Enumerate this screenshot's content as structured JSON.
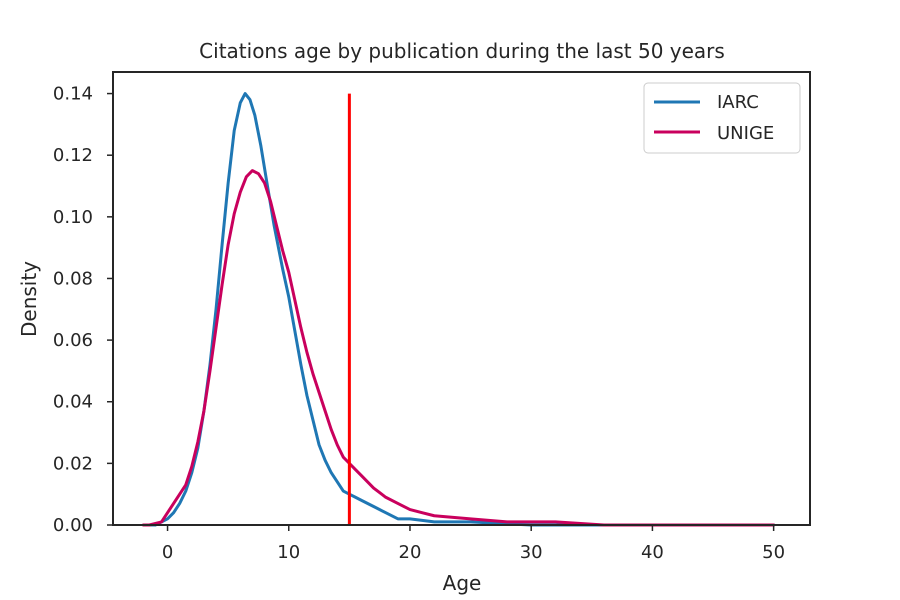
{
  "chart_data": {
    "type": "line",
    "title": "Citations age by publication during the last 50 years",
    "xlabel": "Age",
    "ylabel": "Density",
    "xlim": [
      -4.5,
      53
    ],
    "ylim": [
      0,
      0.147
    ],
    "xticks": [
      0,
      10,
      20,
      30,
      40,
      50
    ],
    "yticks": [
      0.0,
      0.02,
      0.04,
      0.06,
      0.08,
      0.1,
      0.12,
      0.14
    ],
    "xtick_labels": [
      "0",
      "10",
      "20",
      "30",
      "40",
      "50"
    ],
    "ytick_labels": [
      "0.00",
      "0.02",
      "0.04",
      "0.06",
      "0.08",
      "0.10",
      "0.12",
      "0.14"
    ],
    "grid": false,
    "legend_position": "top-right",
    "reference_line": {
      "x": 15,
      "y_top": 0.14,
      "color": "#ff0000"
    },
    "series": [
      {
        "name": "IARC",
        "color": "#1f77b4",
        "points": [
          [
            -1.5,
            0.0
          ],
          [
            -1.0,
            0.0
          ],
          [
            -0.5,
            0.001
          ],
          [
            0.0,
            0.002
          ],
          [
            0.5,
            0.004
          ],
          [
            1.0,
            0.007
          ],
          [
            1.5,
            0.011
          ],
          [
            2.0,
            0.017
          ],
          [
            2.5,
            0.025
          ],
          [
            3.0,
            0.037
          ],
          [
            3.5,
            0.052
          ],
          [
            4.0,
            0.07
          ],
          [
            4.5,
            0.091
          ],
          [
            5.0,
            0.111
          ],
          [
            5.5,
            0.128
          ],
          [
            6.0,
            0.137
          ],
          [
            6.4,
            0.14
          ],
          [
            6.8,
            0.138
          ],
          [
            7.2,
            0.133
          ],
          [
            7.7,
            0.123
          ],
          [
            8.2,
            0.111
          ],
          [
            8.8,
            0.097
          ],
          [
            9.5,
            0.083
          ],
          [
            10.0,
            0.074
          ],
          [
            10.5,
            0.063
          ],
          [
            11.0,
            0.052
          ],
          [
            11.5,
            0.042
          ],
          [
            12.0,
            0.034
          ],
          [
            12.5,
            0.026
          ],
          [
            13.0,
            0.021
          ],
          [
            13.5,
            0.017
          ],
          [
            14.0,
            0.014
          ],
          [
            14.5,
            0.011
          ],
          [
            15.0,
            0.01
          ],
          [
            15.5,
            0.009
          ],
          [
            16.0,
            0.008
          ],
          [
            17.0,
            0.006
          ],
          [
            18.0,
            0.004
          ],
          [
            19.0,
            0.002
          ],
          [
            20.0,
            0.002
          ],
          [
            22.0,
            0.001
          ],
          [
            25.0,
            0.001
          ],
          [
            30.0,
            0.0
          ],
          [
            35.0,
            0.0
          ],
          [
            40.0,
            0.0
          ],
          [
            45.0,
            0.0
          ],
          [
            50.0,
            0.0
          ]
        ]
      },
      {
        "name": "UNIGE",
        "color": "#c9005d",
        "points": [
          [
            -2.0,
            0.0
          ],
          [
            -1.5,
            0.0
          ],
          [
            -0.5,
            0.001
          ],
          [
            0.0,
            0.004
          ],
          [
            0.5,
            0.007
          ],
          [
            1.0,
            0.01
          ],
          [
            1.5,
            0.013
          ],
          [
            2.0,
            0.019
          ],
          [
            2.5,
            0.027
          ],
          [
            3.0,
            0.037
          ],
          [
            3.5,
            0.05
          ],
          [
            4.0,
            0.064
          ],
          [
            4.5,
            0.078
          ],
          [
            5.0,
            0.091
          ],
          [
            5.5,
            0.101
          ],
          [
            6.0,
            0.108
          ],
          [
            6.5,
            0.113
          ],
          [
            7.0,
            0.115
          ],
          [
            7.5,
            0.114
          ],
          [
            8.0,
            0.111
          ],
          [
            8.5,
            0.105
          ],
          [
            9.0,
            0.097
          ],
          [
            9.5,
            0.089
          ],
          [
            10.0,
            0.082
          ],
          [
            10.5,
            0.073
          ],
          [
            11.0,
            0.064
          ],
          [
            11.5,
            0.056
          ],
          [
            12.0,
            0.049
          ],
          [
            12.5,
            0.043
          ],
          [
            13.0,
            0.037
          ],
          [
            13.5,
            0.031
          ],
          [
            14.0,
            0.026
          ],
          [
            14.5,
            0.022
          ],
          [
            15.0,
            0.02
          ],
          [
            15.5,
            0.018
          ],
          [
            16.0,
            0.016
          ],
          [
            17.0,
            0.012
          ],
          [
            18.0,
            0.009
          ],
          [
            19.0,
            0.007
          ],
          [
            20.0,
            0.005
          ],
          [
            21.0,
            0.004
          ],
          [
            22.0,
            0.003
          ],
          [
            25.0,
            0.002
          ],
          [
            28.0,
            0.001
          ],
          [
            32.0,
            0.001
          ],
          [
            36.0,
            0.0
          ],
          [
            40.0,
            0.0
          ],
          [
            45.0,
            0.0
          ],
          [
            50.0,
            0.0
          ]
        ]
      }
    ]
  }
}
